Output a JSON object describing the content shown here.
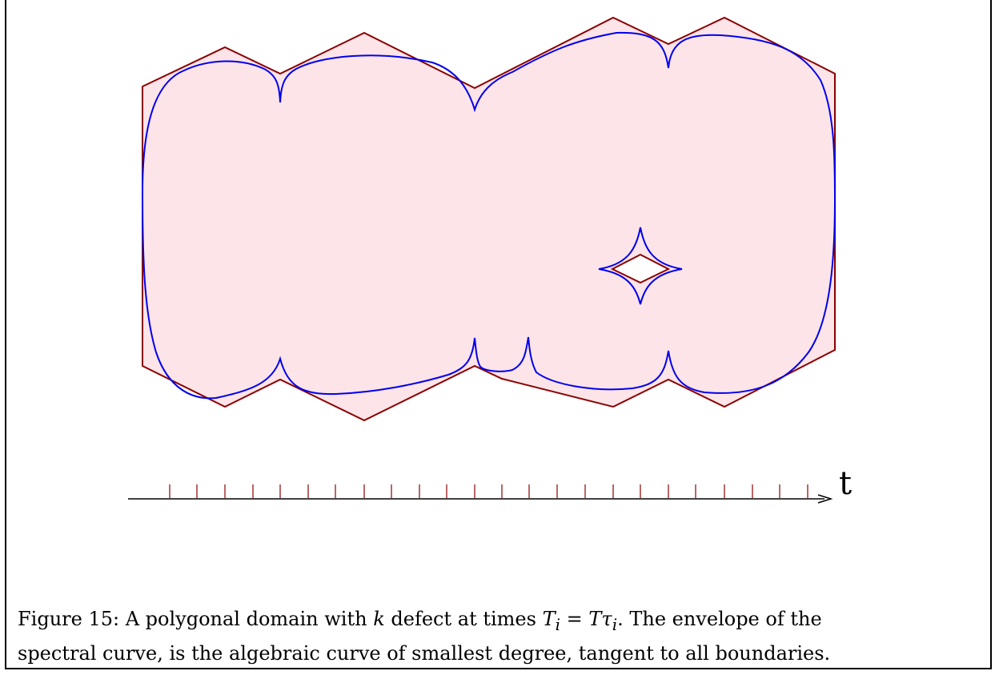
{
  "figure": {
    "axis_label": "t",
    "colors": {
      "domain_fill": "#fde4e8",
      "boundary": "#8b0000",
      "envelope": "#0000ee",
      "axis": "#000000"
    }
  },
  "caption": {
    "prefix": "Figure 15: A polygonal domain with",
    "k": "k",
    "middle": "defect at times",
    "formula": "T",
    "sub_i": "i",
    "equals": "=",
    "T2": "T",
    "tau": "τ",
    "sub_i2": "i",
    "rest_line1": ". The envelope of the",
    "line2": "spectral curve, is the algebraic curve of smallest degree, tangent to all boundaries."
  }
}
